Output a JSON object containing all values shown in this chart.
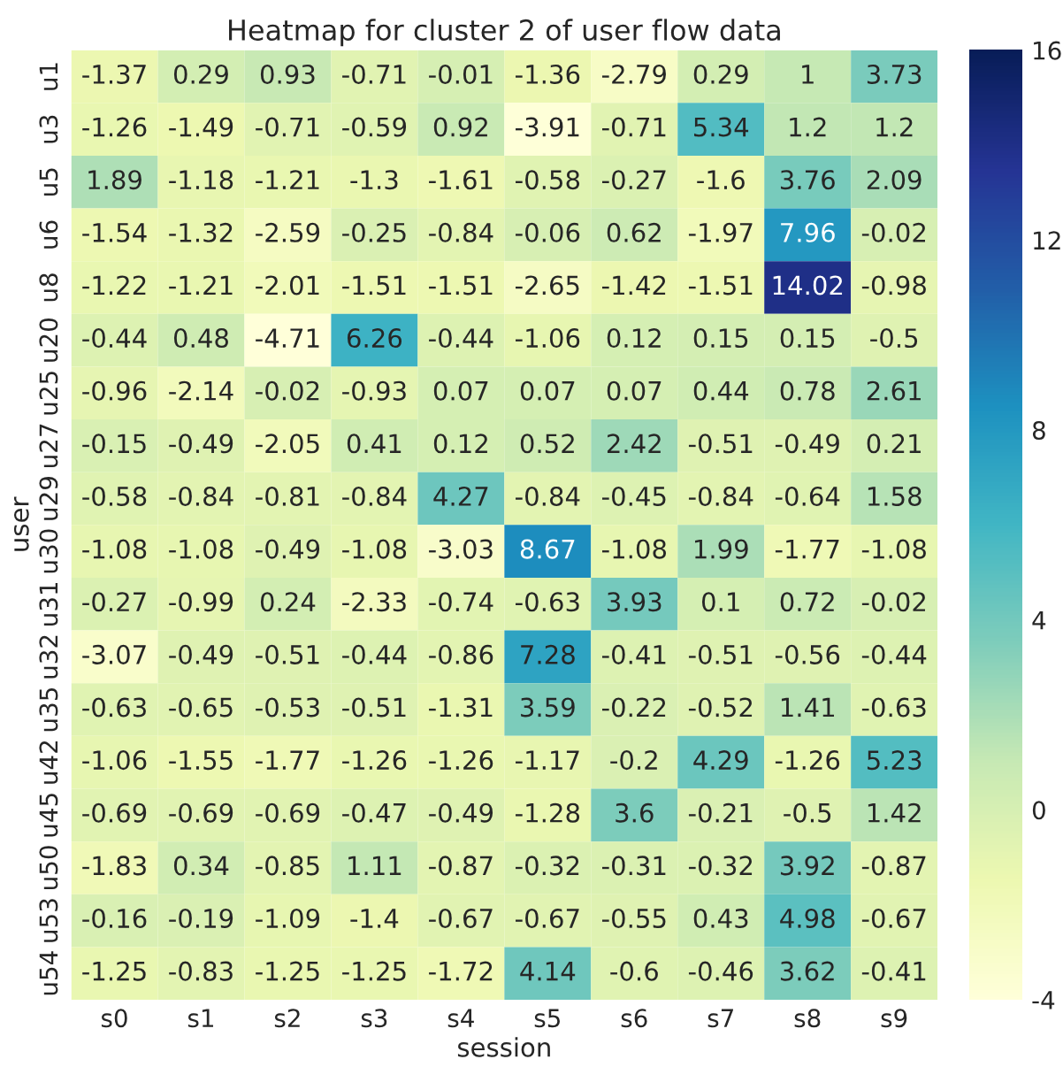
{
  "chart_data": {
    "type": "heatmap",
    "title": "Heatmap for cluster 2 of user flow data",
    "xlabel": "session",
    "ylabel": "user",
    "categories": [
      "s0",
      "s1",
      "s2",
      "s3",
      "s4",
      "s5",
      "s6",
      "s7",
      "s8",
      "s9"
    ],
    "y_categories": [
      "u1",
      "u3",
      "u5",
      "u6",
      "u8",
      "u20",
      "u25",
      "u27",
      "u29",
      "u30",
      "u31",
      "u32",
      "u35",
      "u42",
      "u45",
      "u50",
      "u53",
      "u54"
    ],
    "cells": [
      [
        -1.37,
        0.29,
        0.93,
        -0.71,
        -0.01,
        -1.36,
        -2.79,
        0.29,
        1,
        3.73
      ],
      [
        -1.26,
        -1.49,
        -0.71,
        -0.59,
        0.92,
        -3.91,
        -0.71,
        5.34,
        1.2,
        1.2
      ],
      [
        1.89,
        -1.18,
        -1.21,
        -1.3,
        -1.61,
        -0.58,
        -0.27,
        -1.6,
        3.76,
        2.09
      ],
      [
        -1.54,
        -1.32,
        -2.59,
        -0.25,
        -0.84,
        -0.06,
        0.62,
        -1.97,
        7.96,
        -0.02
      ],
      [
        -1.22,
        -1.21,
        -2.01,
        -1.51,
        -1.51,
        -2.65,
        -1.42,
        -1.51,
        14.02,
        -0.98
      ],
      [
        -0.44,
        0.48,
        -4.71,
        6.26,
        -0.44,
        -1.06,
        0.12,
        0.15,
        0.15,
        -0.5
      ],
      [
        -0.96,
        -2.14,
        -0.02,
        -0.93,
        0.07,
        0.07,
        0.07,
        0.44,
        0.78,
        2.61
      ],
      [
        -0.15,
        -0.49,
        -2.05,
        0.41,
        0.12,
        0.52,
        2.42,
        -0.51,
        -0.49,
        0.21
      ],
      [
        -0.58,
        -0.84,
        -0.81,
        -0.84,
        4.27,
        -0.84,
        -0.45,
        -0.84,
        -0.64,
        1.58
      ],
      [
        -1.08,
        -1.08,
        -0.49,
        -1.08,
        -3.03,
        8.67,
        -1.08,
        1.99,
        -1.77,
        -1.08
      ],
      [
        -0.27,
        -0.99,
        0.24,
        -2.33,
        -0.74,
        -0.63,
        3.93,
        0.1,
        0.72,
        -0.02
      ],
      [
        -3.07,
        -0.49,
        -0.51,
        -0.44,
        -0.86,
        7.28,
        -0.41,
        -0.51,
        -0.56,
        -0.44
      ],
      [
        -0.63,
        -0.65,
        -0.53,
        -0.51,
        -1.31,
        3.59,
        -0.22,
        -0.52,
        1.41,
        -0.63
      ],
      [
        -1.06,
        -1.55,
        -1.77,
        -1.26,
        -1.26,
        -1.17,
        -0.2,
        4.29,
        -1.26,
        5.23
      ],
      [
        -0.69,
        -0.69,
        -0.69,
        -0.47,
        -0.49,
        -1.28,
        3.6,
        -0.21,
        -0.5,
        1.42
      ],
      [
        -1.83,
        0.34,
        -0.85,
        1.11,
        -0.87,
        -0.32,
        -0.31,
        -0.32,
        3.92,
        -0.87
      ],
      [
        -0.16,
        -0.19,
        -1.09,
        -1.4,
        -0.67,
        -0.67,
        -0.55,
        0.43,
        4.98,
        -0.67
      ],
      [
        -1.25,
        -0.83,
        -1.25,
        -1.25,
        -1.72,
        4.14,
        -0.6,
        -0.46,
        3.62,
        -0.41
      ]
    ],
    "clim": [
      -4,
      16
    ],
    "cticks": [
      -4,
      0,
      4,
      8,
      12,
      16
    ],
    "data_labels": true
  }
}
